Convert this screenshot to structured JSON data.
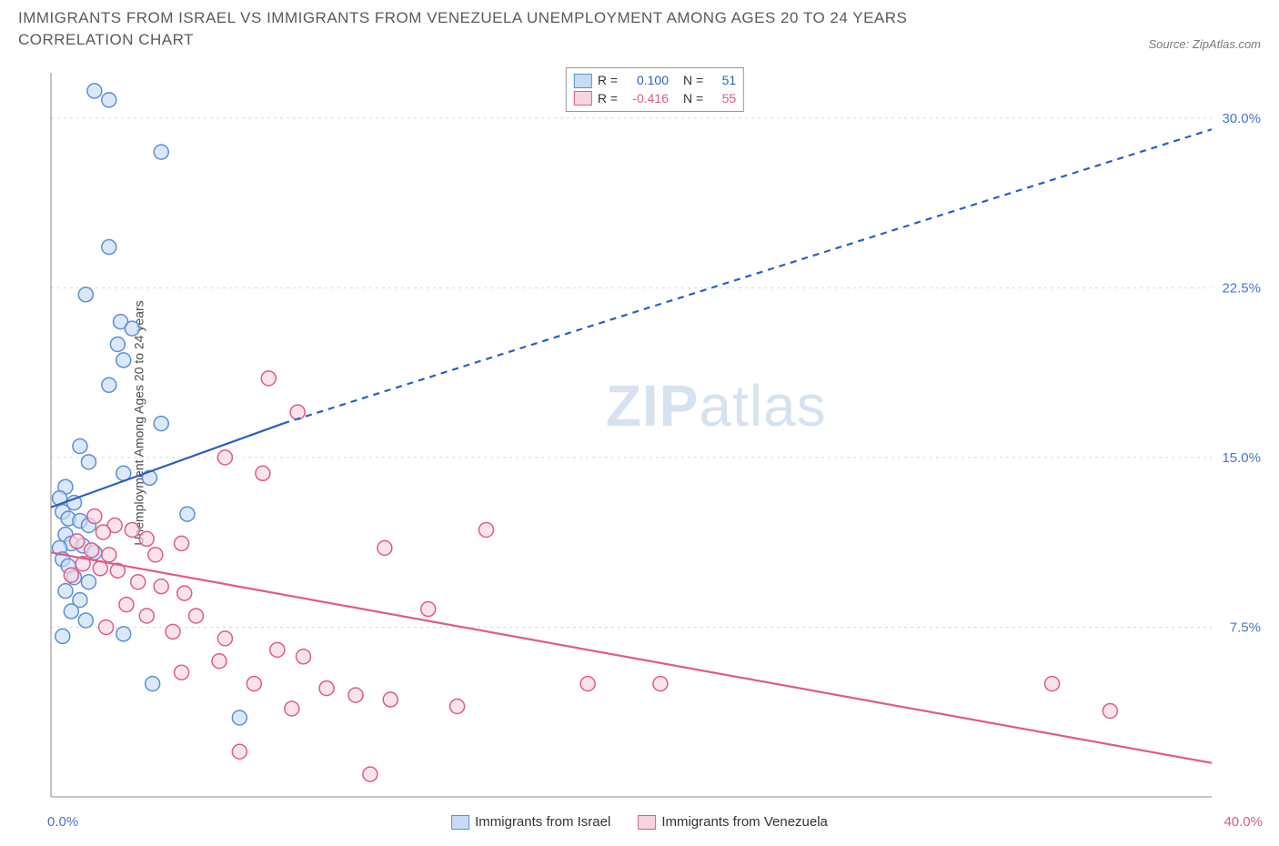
{
  "title": "IMMIGRANTS FROM ISRAEL VS IMMIGRANTS FROM VENEZUELA UNEMPLOYMENT AMONG AGES 20 TO 24 YEARS CORRELATION CHART",
  "source": "Source: ZipAtlas.com",
  "ylabel": "Unemployment Among Ages 20 to 24 years",
  "watermark_bold": "ZIP",
  "watermark_light": "atlas",
  "chart": {
    "type": "scatter",
    "xlim": [
      0,
      40
    ],
    "ylim": [
      0,
      32
    ],
    "xmin_label": "0.0%",
    "xmax_label": "40.0%",
    "xmin_color": "#4a74d0",
    "xmax_color": "#e05a8a",
    "y_ticks": [
      7.5,
      15.0,
      22.5,
      30.0
    ],
    "y_tick_labels": [
      "7.5%",
      "15.0%",
      "22.5%",
      "30.0%"
    ],
    "y_tick_color": "#4a74d0",
    "grid_color": "#d9d9d9",
    "axis_color": "#888888",
    "background": "#ffffff",
    "marker_radius": 8,
    "marker_stroke_width": 1.5,
    "line_width": 2.2,
    "series": [
      {
        "name": "Immigrants from Israel",
        "fill": "#c8dbf4",
        "stroke": "#5b8fd6",
        "line_color": "#2b5fc0",
        "R": "0.100",
        "N": "51",
        "trend": {
          "solid_from": [
            0,
            12.8
          ],
          "solid_to": [
            8,
            16.5
          ],
          "dash_to": [
            40,
            29.5
          ]
        },
        "points": [
          [
            1.5,
            31.2
          ],
          [
            2.0,
            30.8
          ],
          [
            3.8,
            28.5
          ],
          [
            2.0,
            24.3
          ],
          [
            1.2,
            22.2
          ],
          [
            2.4,
            21.0
          ],
          [
            2.8,
            20.7
          ],
          [
            2.3,
            20.0
          ],
          [
            2.5,
            19.3
          ],
          [
            2.0,
            18.2
          ],
          [
            3.8,
            16.5
          ],
          [
            1.0,
            15.5
          ],
          [
            1.3,
            14.8
          ],
          [
            2.5,
            14.3
          ],
          [
            3.4,
            14.1
          ],
          [
            0.5,
            13.7
          ],
          [
            0.8,
            13.0
          ],
          [
            0.3,
            13.2
          ],
          [
            0.4,
            12.6
          ],
          [
            0.6,
            12.3
          ],
          [
            1.0,
            12.2
          ],
          [
            1.3,
            12.0
          ],
          [
            0.5,
            11.6
          ],
          [
            0.7,
            11.2
          ],
          [
            0.3,
            11.0
          ],
          [
            1.1,
            11.1
          ],
          [
            1.5,
            10.8
          ],
          [
            0.4,
            10.5
          ],
          [
            0.6,
            10.2
          ],
          [
            4.7,
            12.5
          ],
          [
            0.8,
            9.7
          ],
          [
            1.3,
            9.5
          ],
          [
            0.5,
            9.1
          ],
          [
            1.0,
            8.7
          ],
          [
            0.7,
            8.2
          ],
          [
            1.2,
            7.8
          ],
          [
            0.4,
            7.1
          ],
          [
            2.5,
            7.2
          ],
          [
            3.5,
            5.0
          ],
          [
            6.5,
            3.5
          ]
        ]
      },
      {
        "name": "Immigrants from Venezuela",
        "fill": "#f7d5e0",
        "stroke": "#e05a8a",
        "line_color": "#e05a8a",
        "R": "-0.416",
        "N": "55",
        "trend": {
          "solid_from": [
            0,
            10.8
          ],
          "solid_to": [
            40,
            1.5
          ],
          "dash_to": null
        },
        "points": [
          [
            7.5,
            18.5
          ],
          [
            8.5,
            17.0
          ],
          [
            6.0,
            15.0
          ],
          [
            7.3,
            14.3
          ],
          [
            1.5,
            12.4
          ],
          [
            2.2,
            12.0
          ],
          [
            1.8,
            11.7
          ],
          [
            2.8,
            11.8
          ],
          [
            3.3,
            11.4
          ],
          [
            0.9,
            11.3
          ],
          [
            1.4,
            10.9
          ],
          [
            2.0,
            10.7
          ],
          [
            3.6,
            10.7
          ],
          [
            4.5,
            11.2
          ],
          [
            1.1,
            10.3
          ],
          [
            1.7,
            10.1
          ],
          [
            2.3,
            10.0
          ],
          [
            0.7,
            9.8
          ],
          [
            3.0,
            9.5
          ],
          [
            3.8,
            9.3
          ],
          [
            4.6,
            9.0
          ],
          [
            15.0,
            11.8
          ],
          [
            11.5,
            11.0
          ],
          [
            13.0,
            8.3
          ],
          [
            2.6,
            8.5
          ],
          [
            3.3,
            8.0
          ],
          [
            5.0,
            8.0
          ],
          [
            1.9,
            7.5
          ],
          [
            4.2,
            7.3
          ],
          [
            6.0,
            7.0
          ],
          [
            7.8,
            6.5
          ],
          [
            8.7,
            6.2
          ],
          [
            5.8,
            6.0
          ],
          [
            4.5,
            5.5
          ],
          [
            7.0,
            5.0
          ],
          [
            9.5,
            4.8
          ],
          [
            10.5,
            4.5
          ],
          [
            11.7,
            4.3
          ],
          [
            14.0,
            4.0
          ],
          [
            18.5,
            5.0
          ],
          [
            21.0,
            5.0
          ],
          [
            34.5,
            5.0
          ],
          [
            36.5,
            3.8
          ],
          [
            6.5,
            2.0
          ],
          [
            11.0,
            1.0
          ],
          [
            8.3,
            3.9
          ]
        ]
      }
    ]
  },
  "legend_top": [
    {
      "series_index": 0,
      "r_label": "R =",
      "n_label": "N ="
    },
    {
      "series_index": 1,
      "r_label": "R =",
      "n_label": "N ="
    }
  ],
  "legend_bottom": [
    {
      "series_index": 0
    },
    {
      "series_index": 1
    }
  ]
}
